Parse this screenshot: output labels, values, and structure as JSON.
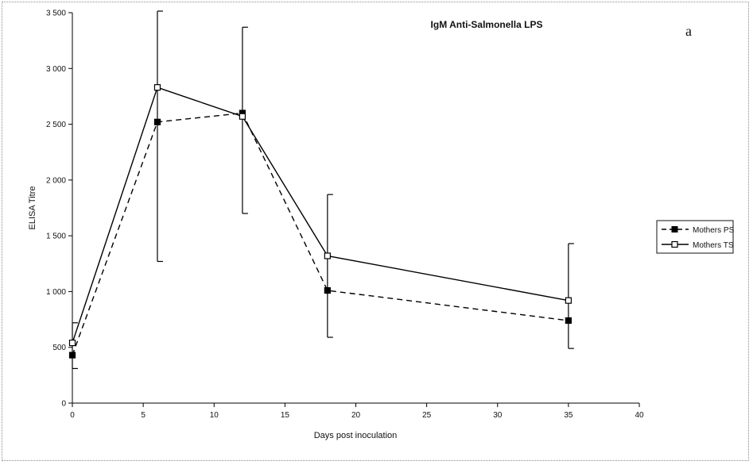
{
  "chart_data": {
    "type": "line",
    "title": "IgM Anti-Salmonella LPS",
    "panel_label": "a",
    "xlabel": "Days post inoculation",
    "ylabel": "ELISA Titre",
    "xlim": [
      0,
      40
    ],
    "ylim": [
      0,
      3500
    ],
    "x_ticks": [
      0,
      5,
      10,
      15,
      20,
      25,
      30,
      35,
      40
    ],
    "x_tick_labels": [
      "0",
      "5",
      "10",
      "15",
      "20",
      "25",
      "30",
      "35",
      "40"
    ],
    "y_ticks": [
      0,
      500,
      1000,
      1500,
      2000,
      2500,
      3000,
      3500
    ],
    "y_tick_labels": [
      "0",
      "500",
      "1 000",
      "1 500",
      "2 000",
      "2 500",
      "3 000",
      "3 500"
    ],
    "grid": false,
    "legend_position": "right",
    "series": [
      {
        "name": "Mothers PS",
        "line_style": "dashed",
        "marker": "filled-square",
        "color": "#000000",
        "x": [
          0,
          6,
          12,
          18,
          35
        ],
        "y": [
          430,
          2520,
          2600,
          1010,
          740
        ],
        "error_low": [
          310,
          1270,
          1700,
          590,
          490
        ],
        "error_high": [
          720,
          3530,
          3370,
          1870,
          1430
        ]
      },
      {
        "name": "Mothers TS",
        "line_style": "solid",
        "marker": "open-square",
        "color": "#000000",
        "x": [
          0,
          6,
          12,
          18,
          35
        ],
        "y": [
          540,
          2830,
          2570,
          1320,
          920
        ],
        "error_low": [
          310,
          1270,
          1700,
          590,
          490
        ],
        "error_high": [
          720,
          3530,
          3370,
          1870,
          1430
        ]
      }
    ]
  }
}
